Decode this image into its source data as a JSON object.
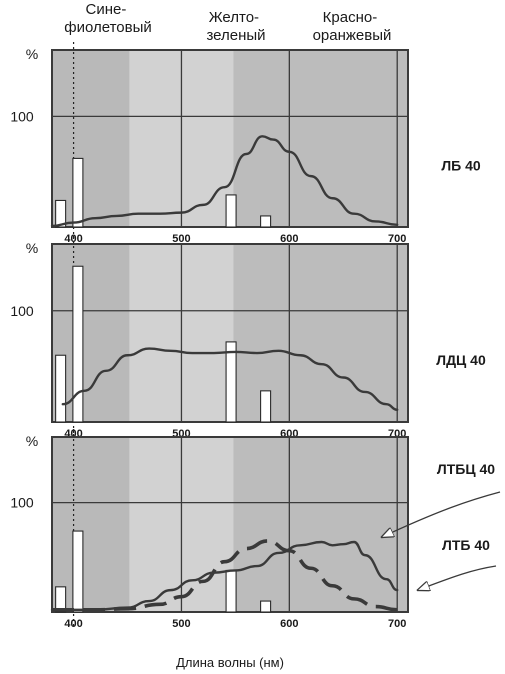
{
  "band_labels": [
    "Сине-\nфиолетовый",
    "Желто-\nзеленый",
    "Красно-\nоранжевый"
  ],
  "x_title": "Длина волны (нм)",
  "colors": {
    "band_violet": "#b9b9b9",
    "band_green": "#d2d2d2",
    "band_red": "#bcbcbc",
    "ink": "#3a3a3a",
    "bar_fill": "#ffffff"
  },
  "chart_data": [
    {
      "type": "line",
      "lamp_label": "ЛБ 40",
      "ylabel": "%",
      "yticks": [
        100
      ],
      "xticks": [
        400,
        500,
        600,
        700
      ],
      "xlim": [
        380,
        710
      ],
      "ylim": [
        0,
        160
      ],
      "grid": true,
      "bars": [
        {
          "x": 388,
          "value": 24
        },
        {
          "x": 404,
          "value": 62
        },
        {
          "x": 546,
          "value": 29
        },
        {
          "x": 578,
          "value": 10
        }
      ],
      "series": [
        {
          "style": "solid",
          "x": [
            380,
            400,
            420,
            440,
            460,
            480,
            500,
            520,
            540,
            560,
            575,
            585,
            600,
            620,
            640,
            660,
            680,
            700
          ],
          "y": [
            1,
            4,
            8,
            10,
            12,
            12,
            13,
            20,
            36,
            66,
            82,
            79,
            68,
            46,
            26,
            12,
            5,
            2
          ]
        }
      ]
    },
    {
      "type": "line",
      "lamp_label": "ЛДЦ 40",
      "ylabel": "%",
      "yticks": [
        100
      ],
      "xticks": [
        400,
        500,
        600,
        700
      ],
      "xlim": [
        380,
        710
      ],
      "ylim": [
        0,
        160
      ],
      "grid": true,
      "bars": [
        {
          "x": 388,
          "value": 60
        },
        {
          "x": 404,
          "value": 140
        },
        {
          "x": 546,
          "value": 72
        },
        {
          "x": 578,
          "value": 28
        }
      ],
      "series": [
        {
          "style": "solid",
          "x": [
            390,
            410,
            430,
            450,
            470,
            490,
            510,
            530,
            550,
            570,
            590,
            610,
            630,
            650,
            670,
            690,
            700
          ],
          "y": [
            16,
            28,
            46,
            60,
            66,
            64,
            62,
            62,
            63,
            62,
            64,
            60,
            52,
            40,
            27,
            16,
            11
          ]
        }
      ]
    },
    {
      "type": "line",
      "lamp_label": [
        "ЛТБЦ 40",
        "ЛТБ 40"
      ],
      "ylabel": "%",
      "yticks": [
        100
      ],
      "xticks": [
        400,
        500,
        600,
        700
      ],
      "xlim": [
        380,
        710
      ],
      "ylim": [
        0,
        160
      ],
      "grid": true,
      "bars": [
        {
          "x": 388,
          "value": 23
        },
        {
          "x": 404,
          "value": 74
        },
        {
          "x": 546,
          "value": 38
        },
        {
          "x": 578,
          "value": 10
        }
      ],
      "series": [
        {
          "style": "solid",
          "x": [
            380,
            420,
            450,
            470,
            490,
            510,
            530,
            550,
            570,
            590,
            610,
            630,
            640,
            650,
            660,
            670,
            690,
            700
          ],
          "y": [
            2,
            2,
            4,
            10,
            20,
            29,
            36,
            38,
            42,
            54,
            61,
            64,
            61,
            62,
            64,
            52,
            30,
            20
          ]
        },
        {
          "style": "dashed",
          "x": [
            380,
            420,
            450,
            480,
            500,
            520,
            540,
            560,
            580,
            600,
            620,
            640,
            660,
            680,
            700
          ],
          "y": [
            2,
            2,
            3,
            7,
            14,
            28,
            46,
            58,
            65,
            56,
            40,
            24,
            12,
            5,
            2
          ]
        }
      ]
    }
  ]
}
